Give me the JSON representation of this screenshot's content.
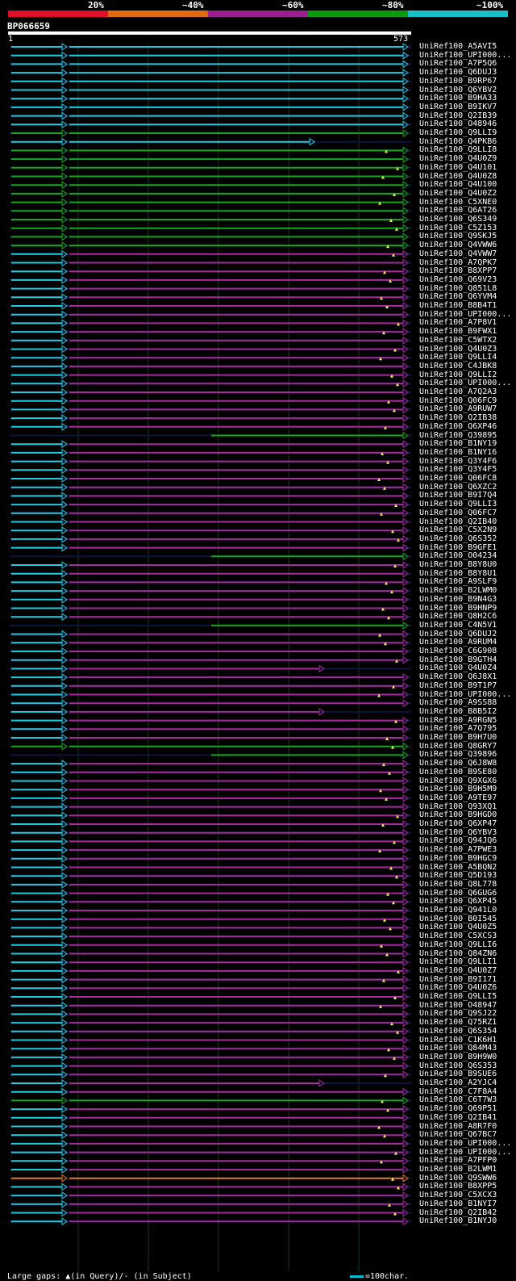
{
  "legend": [
    {
      "label": "20%",
      "color": "#e0102a"
    },
    {
      "label": "~40%",
      "color": "#e06a10"
    },
    {
      "label": "~60%",
      "color": "#9a1e8e"
    },
    {
      "label": "~80%",
      "color": "#0a9a10"
    },
    {
      "label": "~100%",
      "color": "#18c0c8"
    }
  ],
  "query": {
    "name": "BP066659",
    "start": "1",
    "end": "573"
  },
  "footer": {
    "gaps": "Large gaps: ▲(in Query)/- (in Subject)",
    "scale": "=100char."
  },
  "hits": [
    {
      "id": "UniRef100_A5AVI5",
      "color": "cyan"
    },
    {
      "id": "UniRef100_UPI000...",
      "color": "cyan"
    },
    {
      "id": "UniRef100_A7P5Q6",
      "color": "cyan"
    },
    {
      "id": "UniRef100_Q6DUJ3",
      "color": "cyan"
    },
    {
      "id": "UniRef100_B9RP67",
      "color": "cyan"
    },
    {
      "id": "UniRef100_Q6YBV2",
      "color": "cyan"
    },
    {
      "id": "UniRef100_B9HA33",
      "color": "cyan"
    },
    {
      "id": "UniRef100_B9IKV7",
      "color": "cyan"
    },
    {
      "id": "UniRef100_Q2IB39",
      "color": "cyan"
    },
    {
      "id": "UniRef100_O48946",
      "color": "cyan"
    },
    {
      "id": "UniRef100_Q9LLI9",
      "color": "green"
    },
    {
      "id": "UniRef100_Q4PKB6",
      "color": "cyan"
    },
    {
      "id": "UniRef100_Q9LLI8",
      "color": "green"
    },
    {
      "id": "UniRef100_Q4U0Z9",
      "color": "green"
    },
    {
      "id": "UniRef100_Q4U101",
      "color": "green"
    },
    {
      "id": "UniRef100_Q4U0Z8",
      "color": "green"
    },
    {
      "id": "UniRef100_Q4U100",
      "color": "green"
    },
    {
      "id": "UniRef100_Q4U0Z2",
      "color": "green"
    },
    {
      "id": "UniRef100_C5XNE0",
      "color": "green"
    },
    {
      "id": "UniRef100_Q6AT26",
      "color": "green"
    },
    {
      "id": "UniRef100_Q6S349",
      "color": "green"
    },
    {
      "id": "UniRef100_C5Z153",
      "color": "green"
    },
    {
      "id": "UniRef100_Q9SKJ5",
      "color": "green"
    },
    {
      "id": "UniRef100_Q4VWW6",
      "color": "green"
    },
    {
      "id": "UniRef100_Q4VWW7",
      "color": "purple"
    },
    {
      "id": "UniRef100_A7QPK7",
      "color": "purple"
    },
    {
      "id": "UniRef100_B8XPP7",
      "color": "purple"
    },
    {
      "id": "UniRef100_Q69V23",
      "color": "purple"
    },
    {
      "id": "UniRef100_Q851L8",
      "color": "purple"
    },
    {
      "id": "UniRef100_Q6YVM4",
      "color": "purple"
    },
    {
      "id": "UniRef100_B8B4T1",
      "color": "purple"
    },
    {
      "id": "UniRef100_UPI000...",
      "color": "purple"
    },
    {
      "id": "UniRef100_A7P8V1",
      "color": "purple"
    },
    {
      "id": "UniRef100_B9FWX1",
      "color": "purple"
    },
    {
      "id": "UniRef100_C5WTX2",
      "color": "purple"
    },
    {
      "id": "UniRef100_Q4U0Z3",
      "color": "purple"
    },
    {
      "id": "UniRef100_Q9LLI4",
      "color": "purple"
    },
    {
      "id": "UniRef100_C4JBK8",
      "color": "purple"
    },
    {
      "id": "UniRef100_Q9LLI2",
      "color": "purple"
    },
    {
      "id": "UniRef100_UPI000...",
      "color": "purple"
    },
    {
      "id": "UniRef100_A7Q2A3",
      "color": "purple"
    },
    {
      "id": "UniRef100_Q06FC9",
      "color": "purple"
    },
    {
      "id": "UniRef100_A9RUW7",
      "color": "purple"
    },
    {
      "id": "UniRef100_Q2IB38",
      "color": "purple"
    },
    {
      "id": "UniRef100_Q6XP46",
      "color": "purple"
    },
    {
      "id": "UniRef100_Q39895",
      "color": "green"
    },
    {
      "id": "UniRef100_B1NY19",
      "color": "purple"
    },
    {
      "id": "UniRef100_B1NY16",
      "color": "purple"
    },
    {
      "id": "UniRef100_Q3Y4F6",
      "color": "purple"
    },
    {
      "id": "UniRef100_Q3Y4F5",
      "color": "purple"
    },
    {
      "id": "UniRef100_Q06FC8",
      "color": "purple"
    },
    {
      "id": "UniRef100_Q6XZC2",
      "color": "purple"
    },
    {
      "id": "UniRef100_B9I7Q4",
      "color": "purple"
    },
    {
      "id": "UniRef100_Q9LLI3",
      "color": "purple"
    },
    {
      "id": "UniRef100_Q06FC7",
      "color": "purple"
    },
    {
      "id": "UniRef100_Q2IB40",
      "color": "purple"
    },
    {
      "id": "UniRef100_C5X2N9",
      "color": "purple"
    },
    {
      "id": "UniRef100_Q6S352",
      "color": "purple"
    },
    {
      "id": "UniRef100_B9GFE1",
      "color": "purple"
    },
    {
      "id": "UniRef100_O04234",
      "color": "green"
    },
    {
      "id": "UniRef100_B8Y8U0",
      "color": "purple"
    },
    {
      "id": "UniRef100_B8Y8U1",
      "color": "purple"
    },
    {
      "id": "UniRef100_A9SLF9",
      "color": "purple"
    },
    {
      "id": "UniRef100_B2LWM0",
      "color": "purple"
    },
    {
      "id": "UniRef100_B9N4G3",
      "color": "purple"
    },
    {
      "id": "UniRef100_B9HNP9",
      "color": "purple"
    },
    {
      "id": "UniRef100_Q8H2C6",
      "color": "purple"
    },
    {
      "id": "UniRef100_C4N5V1",
      "color": "green"
    },
    {
      "id": "UniRef100_Q6DUJ2",
      "color": "purple"
    },
    {
      "id": "UniRef100_A9RUM4",
      "color": "purple"
    },
    {
      "id": "UniRef100_C6G908",
      "color": "purple"
    },
    {
      "id": "UniRef100_B9GTH4",
      "color": "purple"
    },
    {
      "id": "UniRef100_Q4U0Z4",
      "color": "purple"
    },
    {
      "id": "UniRef100_Q6J8X1",
      "color": "purple"
    },
    {
      "id": "UniRef100_B9T1P7",
      "color": "purple"
    },
    {
      "id": "UniRef100_UPI000...",
      "color": "purple"
    },
    {
      "id": "UniRef100_A9SS88",
      "color": "purple"
    },
    {
      "id": "UniRef100_B8B5I2",
      "color": "purple"
    },
    {
      "id": "UniRef100_A9RGN5",
      "color": "purple"
    },
    {
      "id": "UniRef100_A7Q795",
      "color": "purple"
    },
    {
      "id": "UniRef100_B9H7U0",
      "color": "purple"
    },
    {
      "id": "UniRef100_Q8GRY7",
      "color": "green"
    },
    {
      "id": "UniRef100_Q39896",
      "color": "green"
    },
    {
      "id": "UniRef100_Q6J8W8",
      "color": "purple"
    },
    {
      "id": "UniRef100_B9SE80",
      "color": "purple"
    },
    {
      "id": "UniRef100_Q9XGX6",
      "color": "purple"
    },
    {
      "id": "UniRef100_B9H5M9",
      "color": "purple"
    },
    {
      "id": "UniRef100_A9TE97",
      "color": "purple"
    },
    {
      "id": "UniRef100_Q93XQ1",
      "color": "purple"
    },
    {
      "id": "UniRef100_B9HGD0",
      "color": "purple"
    },
    {
      "id": "UniRef100_Q6XP47",
      "color": "purple"
    },
    {
      "id": "UniRef100_Q6YBV3",
      "color": "purple"
    },
    {
      "id": "UniRef100_Q94JQ6",
      "color": "purple"
    },
    {
      "id": "UniRef100_A7PWE3",
      "color": "purple"
    },
    {
      "id": "UniRef100_B9HGC9",
      "color": "purple"
    },
    {
      "id": "UniRef100_A5BQN2",
      "color": "purple"
    },
    {
      "id": "UniRef100_Q5D193",
      "color": "purple"
    },
    {
      "id": "UniRef100_Q8L778",
      "color": "purple"
    },
    {
      "id": "UniRef100_Q6GUG6",
      "color": "purple"
    },
    {
      "id": "UniRef100_Q6XP45",
      "color": "purple"
    },
    {
      "id": "UniRef100_Q941L0",
      "color": "purple"
    },
    {
      "id": "UniRef100_B0I545",
      "color": "purple"
    },
    {
      "id": "UniRef100_Q4U0Z5",
      "color": "purple"
    },
    {
      "id": "UniRef100_C5XCS3",
      "color": "purple"
    },
    {
      "id": "UniRef100_Q9LLI6",
      "color": "purple"
    },
    {
      "id": "UniRef100_Q84ZN6",
      "color": "purple"
    },
    {
      "id": "UniRef100_Q9LLI1",
      "color": "purple"
    },
    {
      "id": "UniRef100_Q4U0Z7",
      "color": "purple"
    },
    {
      "id": "UniRef100_B9I171",
      "color": "purple"
    },
    {
      "id": "UniRef100_Q4U0Z6",
      "color": "purple"
    },
    {
      "id": "UniRef100_Q9LLI5",
      "color": "purple"
    },
    {
      "id": "UniRef100_O48947",
      "color": "purple"
    },
    {
      "id": "UniRef100_Q9SJ22",
      "color": "purple"
    },
    {
      "id": "UniRef100_Q75RZ1",
      "color": "purple"
    },
    {
      "id": "UniRef100_Q6S354",
      "color": "purple"
    },
    {
      "id": "UniRef100_C1K6H1",
      "color": "purple"
    },
    {
      "id": "UniRef100_Q84M43",
      "color": "purple"
    },
    {
      "id": "UniRef100_B9H9W0",
      "color": "purple"
    },
    {
      "id": "UniRef100_Q6S353",
      "color": "purple"
    },
    {
      "id": "UniRef100_B9SUE6",
      "color": "purple"
    },
    {
      "id": "UniRef100_A2YJC4",
      "color": "purple"
    },
    {
      "id": "UniRef100_C7F8A4",
      "color": "purple"
    },
    {
      "id": "UniRef100_C6T7W3",
      "color": "green"
    },
    {
      "id": "UniRef100_Q69P51",
      "color": "purple"
    },
    {
      "id": "UniRef100_Q2IB41",
      "color": "purple"
    },
    {
      "id": "UniRef100_A8R7F0",
      "color": "purple"
    },
    {
      "id": "UniRef100_Q67BC7",
      "color": "purple"
    },
    {
      "id": "UniRef100_UPI000...",
      "color": "purple"
    },
    {
      "id": "UniRef100_UPI000...",
      "color": "purple"
    },
    {
      "id": "UniRef100_A7PFP0",
      "color": "purple"
    },
    {
      "id": "UniRef100_B2LWM1",
      "color": "purple"
    },
    {
      "id": "UniRef100_Q9SWW6",
      "color": "orange"
    },
    {
      "id": "UniRef100_B8XPP5",
      "color": "purple"
    },
    {
      "id": "UniRef100_C5XCX3",
      "color": "purple"
    },
    {
      "id": "UniRef100_B1NYI7",
      "color": "purple"
    },
    {
      "id": "UniRef100_Q2IB42",
      "color": "purple"
    },
    {
      "id": "UniRef100_B1NYJ0",
      "color": "purple"
    }
  ]
}
